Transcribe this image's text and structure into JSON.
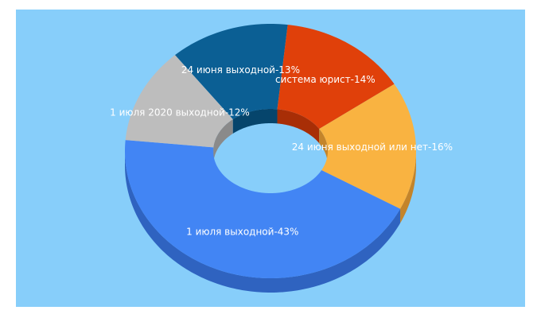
{
  "chart_data": {
    "type": "pie",
    "values": [
      43,
      12,
      13,
      14,
      16
    ],
    "value_labels": [
      "1 июля выходной-43%",
      "1 июля 2020 выходной-12%",
      "24 июня выходной-13%",
      "система юрист-14%",
      "24 июня выходной или нет-16%"
    ],
    "colors": [
      "#4285f4",
      "#bdbdbd",
      "#0b5f94",
      "#e0400a",
      "#f9b341"
    ],
    "side_colors": [
      "#2f63c0",
      "#8a8a8a",
      "#06456c",
      "#a82e06",
      "#c4842a"
    ]
  }
}
